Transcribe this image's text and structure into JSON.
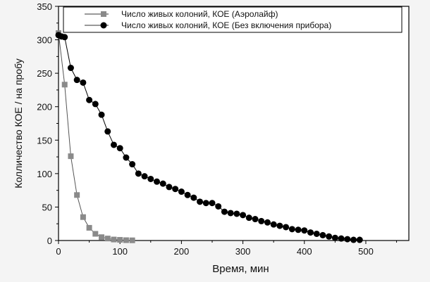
{
  "chart_data": {
    "type": "scatter",
    "xlabel": "Время, мин",
    "ylabel": "Колличество КОЕ / на пробу",
    "xlim": [
      0,
      570
    ],
    "ylim": [
      0,
      350
    ],
    "x_ticks": [
      0,
      100,
      200,
      300,
      400,
      500
    ],
    "y_ticks": [
      0,
      50,
      100,
      150,
      200,
      250,
      300,
      350
    ],
    "grid": false,
    "legend_position": "top",
    "series": [
      {
        "name": "Число живых колоний, КОЕ (Аэролайф)",
        "marker": "square",
        "color": "#8a8a8a",
        "points": [
          [
            0,
            310
          ],
          [
            10,
            233
          ],
          [
            20,
            126
          ],
          [
            30,
            68
          ],
          [
            40,
            35
          ],
          [
            50,
            19
          ],
          [
            60,
            10
          ],
          [
            70,
            5
          ],
          [
            80,
            3
          ],
          [
            90,
            1.5
          ],
          [
            100,
            1
          ],
          [
            110,
            0.5
          ],
          [
            120,
            0.3
          ]
        ]
      },
      {
        "name": "Число живых колоний, КОЕ (Без включения прибора)",
        "marker": "circle",
        "color": "#000000",
        "points": [
          [
            0,
            307
          ],
          [
            5,
            305
          ],
          [
            10,
            304
          ],
          [
            20,
            258
          ],
          [
            30,
            240
          ],
          [
            40,
            236
          ],
          [
            50,
            210
          ],
          [
            60,
            204
          ],
          [
            70,
            188
          ],
          [
            80,
            163
          ],
          [
            90,
            143
          ],
          [
            100,
            138
          ],
          [
            110,
            124
          ],
          [
            120,
            114
          ],
          [
            130,
            100
          ],
          [
            140,
            96
          ],
          [
            150,
            92
          ],
          [
            160,
            88
          ],
          [
            170,
            85
          ],
          [
            180,
            80
          ],
          [
            190,
            77
          ],
          [
            200,
            73
          ],
          [
            210,
            68
          ],
          [
            220,
            64
          ],
          [
            230,
            58
          ],
          [
            240,
            56
          ],
          [
            250,
            56
          ],
          [
            260,
            51
          ],
          [
            270,
            43
          ],
          [
            280,
            41
          ],
          [
            290,
            40
          ],
          [
            300,
            38
          ],
          [
            310,
            34
          ],
          [
            320,
            32
          ],
          [
            330,
            29
          ],
          [
            340,
            27
          ],
          [
            350,
            24
          ],
          [
            360,
            22
          ],
          [
            370,
            20
          ],
          [
            380,
            17
          ],
          [
            390,
            16
          ],
          [
            400,
            15
          ],
          [
            410,
            12
          ],
          [
            420,
            10
          ],
          [
            430,
            8
          ],
          [
            440,
            6
          ],
          [
            450,
            4
          ],
          [
            460,
            3
          ],
          [
            470,
            2
          ],
          [
            480,
            1
          ],
          [
            490,
            1
          ]
        ]
      }
    ]
  }
}
